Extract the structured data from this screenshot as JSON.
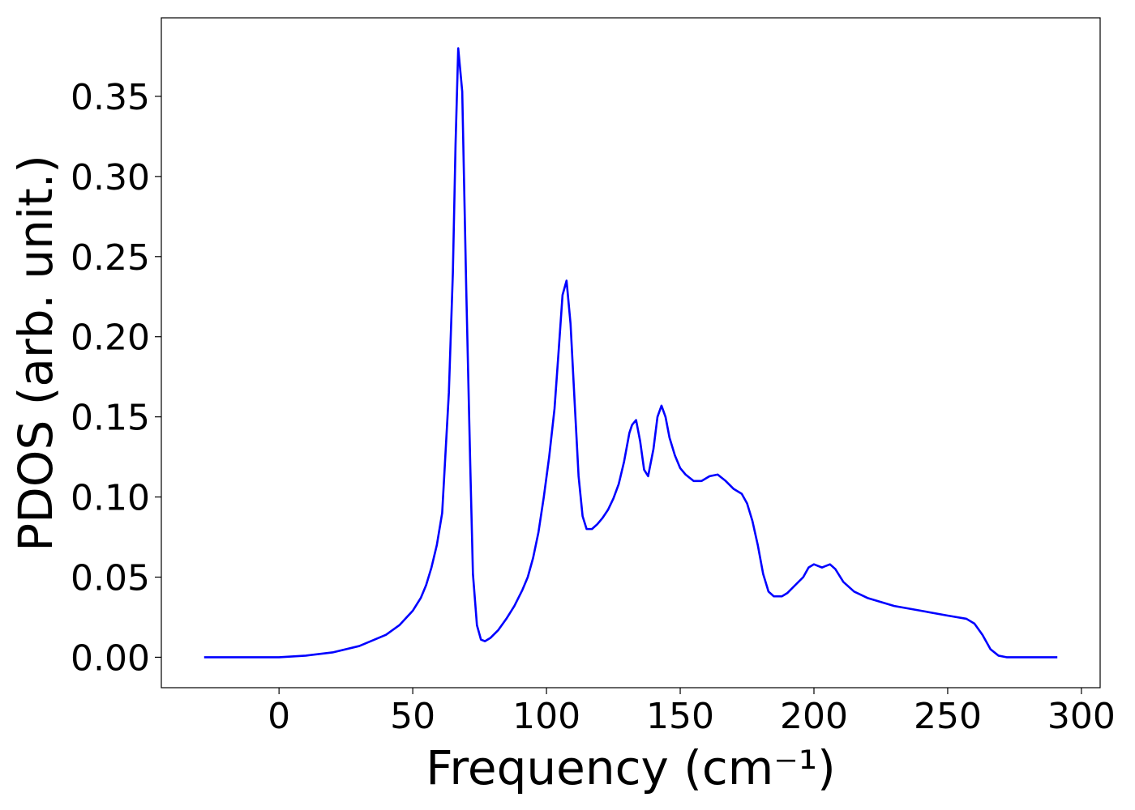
{
  "chart_data": {
    "type": "line",
    "x_label": "Frequency (cm⁻¹)",
    "y_label": "PDOS (arb. unit.)",
    "xlim": [
      -44,
      307
    ],
    "ylim": [
      -0.019,
      0.399
    ],
    "xticks": [
      0,
      50,
      100,
      150,
      200,
      250,
      300
    ],
    "yticks": [
      {
        "value": 0,
        "label": "0.00"
      },
      {
        "value": 0.05,
        "label": "0.05"
      },
      {
        "value": 0.1,
        "label": "0.10"
      },
      {
        "value": 0.15,
        "label": "0.15"
      },
      {
        "value": 0.2,
        "label": "0.20"
      },
      {
        "value": 0.25,
        "label": "0.25"
      },
      {
        "value": 0.3,
        "label": "0.30"
      },
      {
        "value": 0.35,
        "label": "0.35"
      }
    ],
    "grid": false,
    "x": [
      -28,
      0,
      10,
      20,
      30,
      40,
      45,
      50,
      53,
      55,
      57,
      59,
      61,
      62,
      63.5,
      65,
      66,
      67,
      68.5,
      70,
      71.5,
      72.5,
      74,
      75.5,
      77,
      79,
      82,
      85,
      88,
      91,
      93,
      95,
      97,
      99,
      101,
      103,
      104.5,
      106,
      107.5,
      109,
      110.5,
      112,
      113.5,
      115,
      117,
      119,
      121,
      123,
      125,
      127,
      129,
      131,
      132,
      133.5,
      135,
      136.5,
      138,
      140,
      141.5,
      143,
      144.5,
      146,
      148,
      150,
      152,
      155,
      158,
      161,
      164,
      167,
      170,
      173,
      175,
      177,
      179,
      181,
      183,
      185,
      188,
      190,
      193,
      196,
      198,
      200,
      203,
      206,
      208,
      211,
      215,
      220,
      230,
      240,
      250,
      257,
      260,
      263,
      266,
      269,
      272,
      291
    ],
    "series": [
      {
        "color": "#0000ff",
        "values": [
          0,
          0,
          0.001,
          0.003,
          0.007,
          0.014,
          0.02,
          0.029,
          0.037,
          0.045,
          0.056,
          0.07,
          0.09,
          0.12,
          0.165,
          0.24,
          0.32,
          0.38,
          0.353,
          0.23,
          0.12,
          0.052,
          0.02,
          0.011,
          0.01,
          0.012,
          0.017,
          0.024,
          0.032,
          0.042,
          0.05,
          0.062,
          0.078,
          0.1,
          0.125,
          0.155,
          0.19,
          0.226,
          0.235,
          0.208,
          0.16,
          0.113,
          0.088,
          0.08,
          0.08,
          0.083,
          0.087,
          0.092,
          0.099,
          0.108,
          0.122,
          0.14,
          0.145,
          0.148,
          0.135,
          0.117,
          0.113,
          0.13,
          0.15,
          0.157,
          0.15,
          0.137,
          0.126,
          0.118,
          0.114,
          0.11,
          0.11,
          0.113,
          0.114,
          0.11,
          0.105,
          0.102,
          0.096,
          0.085,
          0.07,
          0.052,
          0.041,
          0.038,
          0.038,
          0.04,
          0.045,
          0.05,
          0.056,
          0.058,
          0.056,
          0.058,
          0.055,
          0.047,
          0.041,
          0.037,
          0.032,
          0.029,
          0.026,
          0.024,
          0.021,
          0.014,
          0.005,
          0.001,
          0,
          0
        ]
      }
    ]
  }
}
